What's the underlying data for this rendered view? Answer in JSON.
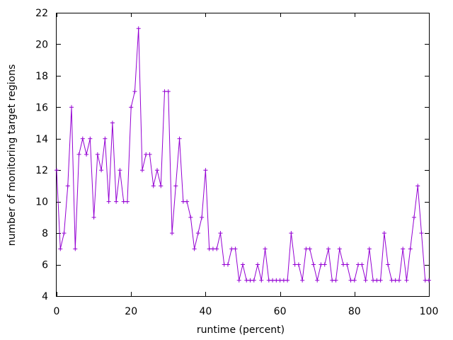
{
  "chart_data": {
    "type": "line",
    "title": "",
    "xlabel": "runtime (percent)",
    "ylabel": "number of monitoring target regions",
    "xlim": [
      0,
      100
    ],
    "ylim": [
      4,
      22
    ],
    "xticks": [
      0,
      20,
      40,
      60,
      80,
      100
    ],
    "yticks": [
      4,
      6,
      8,
      10,
      12,
      14,
      16,
      18,
      20,
      22
    ],
    "grid": false,
    "legend": "none",
    "marker": "plus",
    "colors": {
      "series": "#9400d3",
      "axis": "#000000"
    },
    "series": [
      {
        "x": [
          0,
          1,
          2,
          3,
          4,
          5,
          6,
          7,
          8,
          9,
          10,
          11,
          12,
          13,
          14,
          15,
          16,
          17,
          18,
          19,
          20,
          21,
          22,
          23,
          24,
          25,
          26,
          27,
          28,
          29,
          30,
          31,
          32,
          33,
          34,
          35,
          36,
          37,
          38,
          39,
          40,
          41,
          42,
          43,
          44,
          45,
          46,
          47,
          48,
          49,
          50,
          51,
          52,
          53,
          54,
          55,
          56,
          57,
          58,
          59,
          60,
          61,
          62,
          63,
          64,
          65,
          66,
          67,
          68,
          69,
          70,
          71,
          72,
          73,
          74,
          75,
          76,
          77,
          78,
          79,
          80,
          81,
          82,
          83,
          84,
          85,
          86,
          87,
          88,
          89,
          90,
          91,
          92,
          93,
          94,
          95,
          96,
          97,
          98,
          99,
          100
        ],
        "values": [
          12,
          7,
          8,
          11,
          16,
          7,
          13,
          14,
          13,
          14,
          9,
          13,
          12,
          14,
          10,
          15,
          10,
          12,
          10,
          10,
          16,
          17,
          21,
          12,
          13,
          13,
          11,
          12,
          11,
          17,
          17,
          8,
          11,
          14,
          10,
          10,
          9,
          7,
          8,
          9,
          12,
          7,
          7,
          7,
          8,
          6,
          6,
          7,
          7,
          5,
          6,
          5,
          5,
          5,
          6,
          5,
          7,
          5,
          5,
          5,
          5,
          5,
          5,
          8,
          6,
          6,
          5,
          7,
          7,
          6,
          5,
          6,
          6,
          7,
          5,
          5,
          7,
          6,
          6,
          5,
          5,
          6,
          6,
          5,
          7,
          5,
          5,
          5,
          8,
          6,
          5,
          5,
          5,
          7,
          5,
          7,
          9,
          11,
          8,
          5,
          5
        ]
      }
    ]
  }
}
